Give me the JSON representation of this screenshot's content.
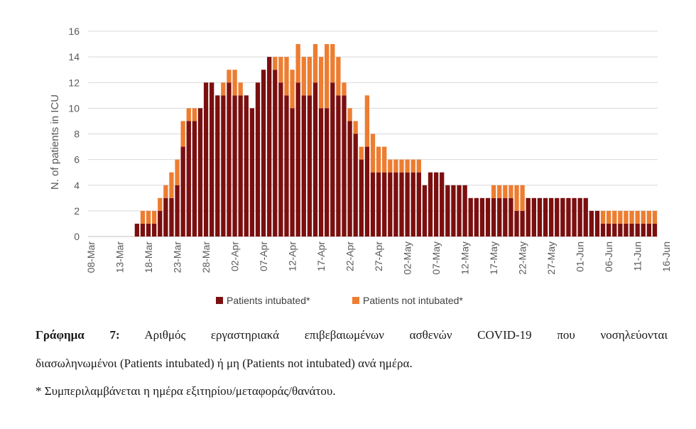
{
  "chart_data": {
    "type": "bar",
    "stacked": true,
    "start_date": "2020-03-08",
    "ylabel": "N. of patients in ICU",
    "xlabel": "",
    "ylim": [
      0,
      16
    ],
    "yticks": [
      0,
      2,
      4,
      6,
      8,
      10,
      12,
      14,
      16
    ],
    "xtick_labels": [
      "08-Mar",
      "13-Mar",
      "18-Mar",
      "23-Mar",
      "28-Mar",
      "02-Apr",
      "07-Apr",
      "12-Apr",
      "17-Apr",
      "22-Apr",
      "27-Apr",
      "02-May",
      "07-May",
      "12-May",
      "17-May",
      "22-May",
      "27-May",
      "01-Jun",
      "06-Jun",
      "11-Jun",
      "16-Jun"
    ],
    "grid": true,
    "legend_position": "bottom",
    "series": [
      {
        "name": "Patients intubated*",
        "color": "#7b0f0f",
        "values": [
          0,
          0,
          0,
          0,
          0,
          0,
          0,
          0,
          1,
          1,
          1,
          1,
          2,
          3,
          3,
          4,
          7,
          9,
          9,
          10,
          12,
          12,
          11,
          11,
          12,
          11,
          11,
          11,
          10,
          12,
          13,
          14,
          13,
          12,
          11,
          10,
          12,
          11,
          11,
          12,
          10,
          10,
          12,
          11,
          11,
          9,
          8,
          6,
          7,
          5,
          5,
          5,
          5,
          5,
          5,
          5,
          5,
          5,
          4,
          5,
          5,
          5,
          4,
          4,
          4,
          4,
          3,
          3,
          3,
          3,
          3,
          3,
          3,
          3,
          2,
          2,
          3,
          3,
          3,
          3,
          3,
          3,
          3,
          3,
          3,
          3,
          3,
          2,
          2,
          1,
          1,
          1,
          1,
          1,
          1,
          1,
          1,
          1,
          1
        ]
      },
      {
        "name": "Patients not intubated*",
        "color": "#ed7d31",
        "values": [
          0,
          0,
          0,
          0,
          0,
          0,
          0,
          0,
          0,
          1,
          1,
          1,
          1,
          1,
          2,
          2,
          2,
          1,
          1,
          0,
          0,
          0,
          0,
          1,
          1,
          2,
          1,
          0,
          0,
          0,
          0,
          0,
          1,
          2,
          3,
          3,
          3,
          3,
          3,
          3,
          4,
          5,
          3,
          3,
          1,
          1,
          1,
          1,
          4,
          3,
          2,
          2,
          1,
          1,
          1,
          1,
          1,
          1,
          0,
          0,
          0,
          0,
          0,
          0,
          0,
          0,
          0,
          0,
          0,
          0,
          1,
          1,
          1,
          1,
          2,
          2,
          0,
          0,
          0,
          0,
          0,
          0,
          0,
          0,
          0,
          0,
          0,
          0,
          0,
          1,
          1,
          1,
          1,
          1,
          1,
          1,
          1,
          1,
          1
        ]
      }
    ]
  },
  "caption": {
    "label": "Γράφημα 7:",
    "line1": "Αριθμός εργαστηριακά επιβεβαιωμένων ασθενών COVID-19 που νοσηλεύονται",
    "line2": "διασωληνωμένοι (Patients intubated) ή μη (Patients not intubated) ανά ημέρα.",
    "note": "* Συμπεριλαμβάνεται η ημέρα εξιτηρίου/μεταφοράς/θανάτου."
  }
}
